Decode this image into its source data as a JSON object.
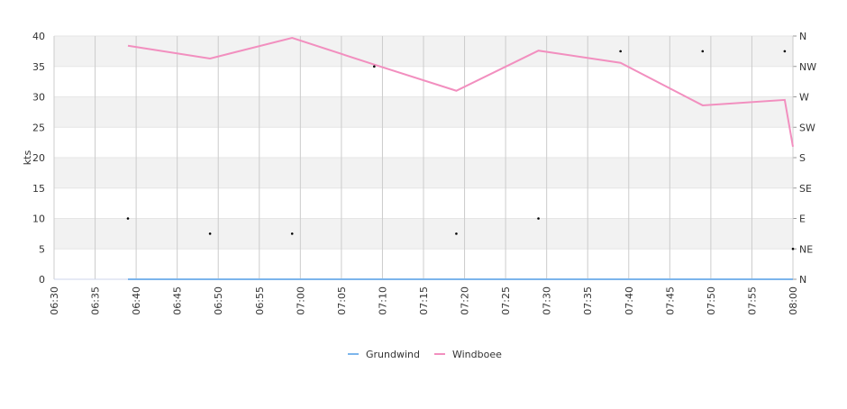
{
  "chart_data": {
    "type": "line",
    "y_label": "kts",
    "xlim": [
      "06:30",
      "08:00"
    ],
    "xticks": [
      "06:30",
      "06:35",
      "06:40",
      "06:45",
      "06:50",
      "06:55",
      "07:00",
      "07:05",
      "07:10",
      "07:15",
      "07:20",
      "07:25",
      "07:30",
      "07:35",
      "07:40",
      "07:45",
      "07:50",
      "07:55",
      "08:00"
    ],
    "ylim": [
      0,
      40
    ],
    "yticks": [
      0,
      5,
      10,
      15,
      20,
      25,
      30,
      35,
      40
    ],
    "y2lim": [
      0,
      360
    ],
    "y2ticks": [
      {
        "value": 0,
        "label": "N"
      },
      {
        "value": 45,
        "label": "NE"
      },
      {
        "value": 90,
        "label": "E"
      },
      {
        "value": 135,
        "label": "SE"
      },
      {
        "value": 180,
        "label": "S"
      },
      {
        "value": 225,
        "label": "SW"
      },
      {
        "value": 270,
        "label": "W"
      },
      {
        "value": 315,
        "label": "NW"
      },
      {
        "value": 360,
        "label": "N"
      }
    ],
    "grid": true,
    "x": [
      "06:39",
      "06:49",
      "06:59",
      "07:09",
      "07:19",
      "07:29",
      "07:39",
      "07:49",
      "07:59",
      "08:00"
    ],
    "series": [
      {
        "name": "Grundwind",
        "color": "#7cb5ec",
        "values": [
          0,
          0,
          0,
          0,
          0,
          0,
          0,
          0,
          0,
          0
        ]
      },
      {
        "name": "Windboee",
        "color": "#f28fbf",
        "values": [
          38.4,
          36.3,
          39.7,
          35.3,
          31.0,
          37.6,
          35.6,
          28.6,
          29.5,
          21.8
        ]
      },
      {
        "color": "#000000",
        "axis": "y2",
        "marker": "dot",
        "values": [
          90,
          67.5,
          67.5,
          315,
          67.5,
          90,
          337.5,
          337.5,
          337.5,
          45
        ]
      }
    ]
  }
}
